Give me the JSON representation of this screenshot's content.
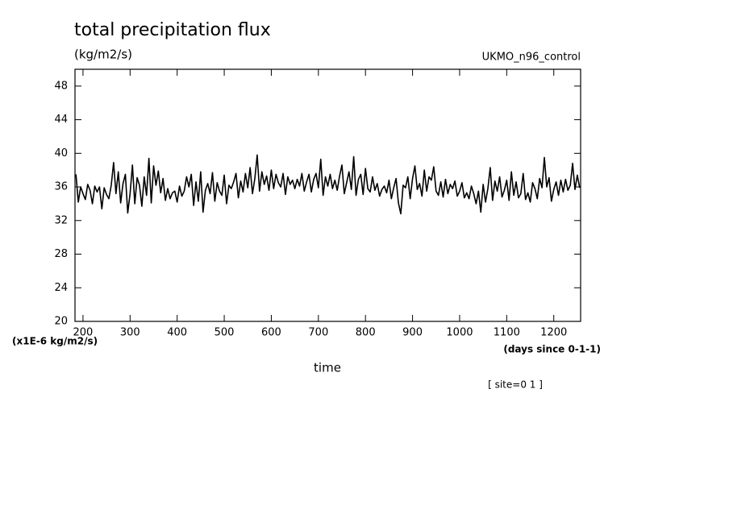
{
  "chart_data": {
    "type": "line",
    "title": "total precipitation flux",
    "subtitle": "(kg/m2/s)",
    "dataset_label": "UKMO_n96_control",
    "y_units_label": "(x1E-6 kg/m2/s)",
    "x_units_label": "(days since 0-1-1)",
    "xlabel": "time",
    "annotation": "[ site=0 1 ]",
    "xlim": [
      183,
      1257
    ],
    "ylim": [
      20,
      50
    ],
    "xticks": [
      200,
      300,
      400,
      500,
      600,
      700,
      800,
      900,
      1000,
      1100,
      1200
    ],
    "yticks": [
      20,
      24,
      28,
      32,
      36,
      40,
      44,
      48
    ],
    "color": "#000000",
    "x": [
      185,
      190,
      195,
      200,
      205,
      210,
      215,
      220,
      225,
      230,
      235,
      240,
      245,
      250,
      255,
      260,
      265,
      270,
      275,
      280,
      285,
      290,
      295,
      300,
      305,
      310,
      315,
      320,
      325,
      330,
      335,
      340,
      345,
      350,
      355,
      360,
      365,
      370,
      375,
      380,
      385,
      390,
      395,
      400,
      405,
      410,
      415,
      420,
      425,
      430,
      435,
      440,
      445,
      450,
      455,
      460,
      465,
      470,
      475,
      480,
      485,
      490,
      495,
      500,
      505,
      510,
      515,
      520,
      525,
      530,
      535,
      540,
      545,
      550,
      555,
      560,
      565,
      570,
      575,
      580,
      585,
      590,
      595,
      600,
      605,
      610,
      615,
      620,
      625,
      630,
      635,
      640,
      645,
      650,
      655,
      660,
      665,
      670,
      675,
      680,
      685,
      690,
      695,
      700,
      705,
      710,
      715,
      720,
      725,
      730,
      735,
      740,
      745,
      750,
      755,
      760,
      765,
      770,
      775,
      780,
      785,
      790,
      795,
      800,
      805,
      810,
      815,
      820,
      825,
      830,
      835,
      840,
      845,
      850,
      855,
      860,
      865,
      870,
      875,
      880,
      885,
      890,
      895,
      900,
      905,
      910,
      915,
      920,
      925,
      930,
      935,
      940,
      945,
      950,
      955,
      960,
      965,
      970,
      975,
      980,
      985,
      990,
      995,
      1000,
      1005,
      1010,
      1015,
      1020,
      1025,
      1030,
      1035,
      1040,
      1045,
      1050,
      1055,
      1060,
      1065,
      1070,
      1075,
      1080,
      1085,
      1090,
      1095,
      1100,
      1105,
      1110,
      1115,
      1120,
      1125,
      1130,
      1135,
      1140,
      1145,
      1150,
      1155,
      1160,
      1165,
      1170,
      1175,
      1180,
      1185,
      1190,
      1195,
      1200,
      1205,
      1210,
      1215,
      1220,
      1225,
      1230,
      1235,
      1240,
      1245,
      1250,
      1255
    ],
    "values": [
      37.5,
      34.2,
      36.0,
      35.2,
      34.5,
      36.3,
      35.6,
      34.0,
      36.1,
      35.4,
      36.0,
      33.4,
      35.9,
      35.1,
      34.6,
      36.2,
      38.9,
      35.2,
      37.8,
      34.1,
      36.4,
      37.5,
      32.9,
      35.2,
      38.6,
      34.0,
      37.1,
      36.2,
      33.7,
      37.2,
      35.0,
      39.4,
      34.1,
      38.5,
      36.2,
      37.9,
      35.3,
      37.0,
      34.4,
      35.8,
      34.6,
      35.3,
      35.5,
      34.2,
      36.1,
      34.9,
      35.5,
      37.2,
      36.0,
      37.5,
      33.8,
      36.6,
      34.3,
      37.8,
      33.0,
      35.6,
      36.4,
      35.2,
      37.7,
      34.3,
      36.5,
      35.5,
      35.0,
      37.4,
      34.0,
      36.2,
      35.8,
      36.6,
      37.6,
      34.7,
      36.7,
      35.4,
      37.6,
      35.9,
      38.3,
      35.2,
      37.0,
      39.8,
      35.5,
      37.8,
      36.3,
      37.3,
      35.6,
      38.0,
      35.8,
      37.5,
      36.5,
      36.0,
      37.6,
      35.1,
      37.2,
      36.3,
      36.8,
      35.8,
      36.9,
      36.1,
      37.6,
      35.5,
      36.6,
      37.5,
      35.4,
      36.9,
      37.6,
      35.9,
      39.3,
      35.0,
      37.2,
      36.1,
      37.5,
      35.8,
      36.8,
      35.6,
      37.3,
      38.6,
      35.2,
      36.5,
      37.8,
      35.7,
      39.6,
      35.0,
      36.9,
      37.5,
      35.1,
      38.2,
      35.8,
      35.4,
      37.2,
      35.6,
      36.4,
      34.9,
      35.7,
      36.1,
      35.3,
      36.8,
      34.6,
      35.9,
      37.0,
      34.1,
      32.8,
      36.2,
      35.9,
      37.2,
      34.6,
      37.0,
      38.5,
      35.7,
      36.4,
      34.9,
      38.0,
      35.5,
      37.2,
      36.8,
      38.4,
      35.5,
      35.0,
      36.6,
      34.8,
      36.9,
      35.2,
      36.3,
      35.8,
      36.7,
      34.9,
      35.5,
      36.5,
      34.7,
      35.3,
      34.6,
      36.1,
      35.2,
      34.0,
      35.5,
      33.0,
      36.3,
      34.2,
      35.8,
      38.3,
      34.4,
      36.7,
      35.5,
      37.2,
      34.8,
      35.6,
      36.8,
      34.4,
      37.8,
      35.0,
      36.6,
      34.7,
      35.2,
      37.6,
      34.5,
      35.3,
      34.2,
      36.5,
      35.8,
      34.6,
      37.0,
      35.9,
      39.5,
      36.0,
      37.1,
      34.3,
      35.7,
      36.6,
      35.0,
      36.8,
      35.4,
      36.9,
      35.6,
      36.2,
      38.8,
      35.7,
      37.4,
      35.9
    ]
  }
}
